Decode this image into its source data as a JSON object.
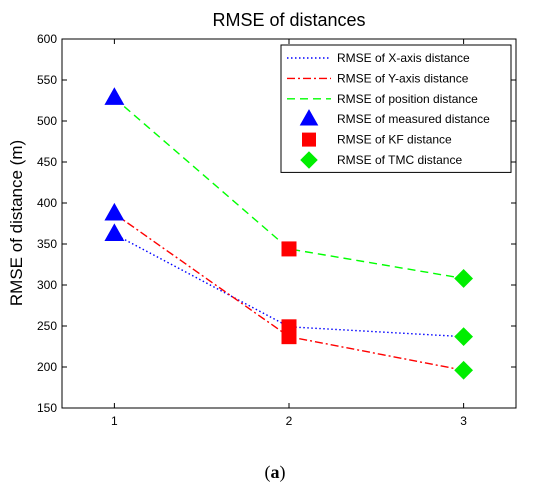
{
  "chart_data": {
    "type": "line",
    "title": "RMSE of distances",
    "xlabel": "",
    "ylabel": "RMSE of distance (m)",
    "x": [
      1,
      2,
      3
    ],
    "xticks": [
      "1",
      "2",
      "3"
    ],
    "xlim": [
      0.7,
      3.3
    ],
    "ylim": [
      150,
      600
    ],
    "yticks": [
      "150",
      "200",
      "250",
      "300",
      "350",
      "400",
      "450",
      "500",
      "550",
      "600"
    ],
    "grid": false,
    "legend_position": "top-right",
    "series": [
      {
        "name": "RMSE of X-axis distance",
        "kind": "line",
        "style": "dotted",
        "color": "#0000ff",
        "values": [
          362,
          249,
          237
        ]
      },
      {
        "name": "RMSE of Y-axis distance",
        "kind": "line",
        "style": "dashdot",
        "color": "#ff0000",
        "values": [
          387,
          237,
          196
        ]
      },
      {
        "name": "RMSE of position distance",
        "kind": "line",
        "style": "dashed",
        "color": "#00ff00",
        "values": [
          528,
          344,
          308
        ]
      },
      {
        "name": "RMSE of measured distance",
        "kind": "marker",
        "marker": "triangle",
        "color": "#0000ff",
        "points": [
          {
            "x": 1,
            "y": 528
          },
          {
            "x": 1,
            "y": 387
          },
          {
            "x": 1,
            "y": 362
          }
        ]
      },
      {
        "name": "RMSE of KF distance",
        "kind": "marker",
        "marker": "square",
        "color": "#ff0000",
        "points": [
          {
            "x": 2,
            "y": 344
          },
          {
            "x": 2,
            "y": 249
          },
          {
            "x": 2,
            "y": 237
          }
        ]
      },
      {
        "name": "RMSE of TMC distance",
        "kind": "marker",
        "marker": "diamond",
        "color": "#00ee00",
        "points": [
          {
            "x": 3,
            "y": 308
          },
          {
            "x": 3,
            "y": 237
          },
          {
            "x": 3,
            "y": 196
          }
        ]
      }
    ]
  },
  "caption": {
    "label": "(a)",
    "prefix": "(",
    "letter": "a",
    "suffix": ")"
  }
}
